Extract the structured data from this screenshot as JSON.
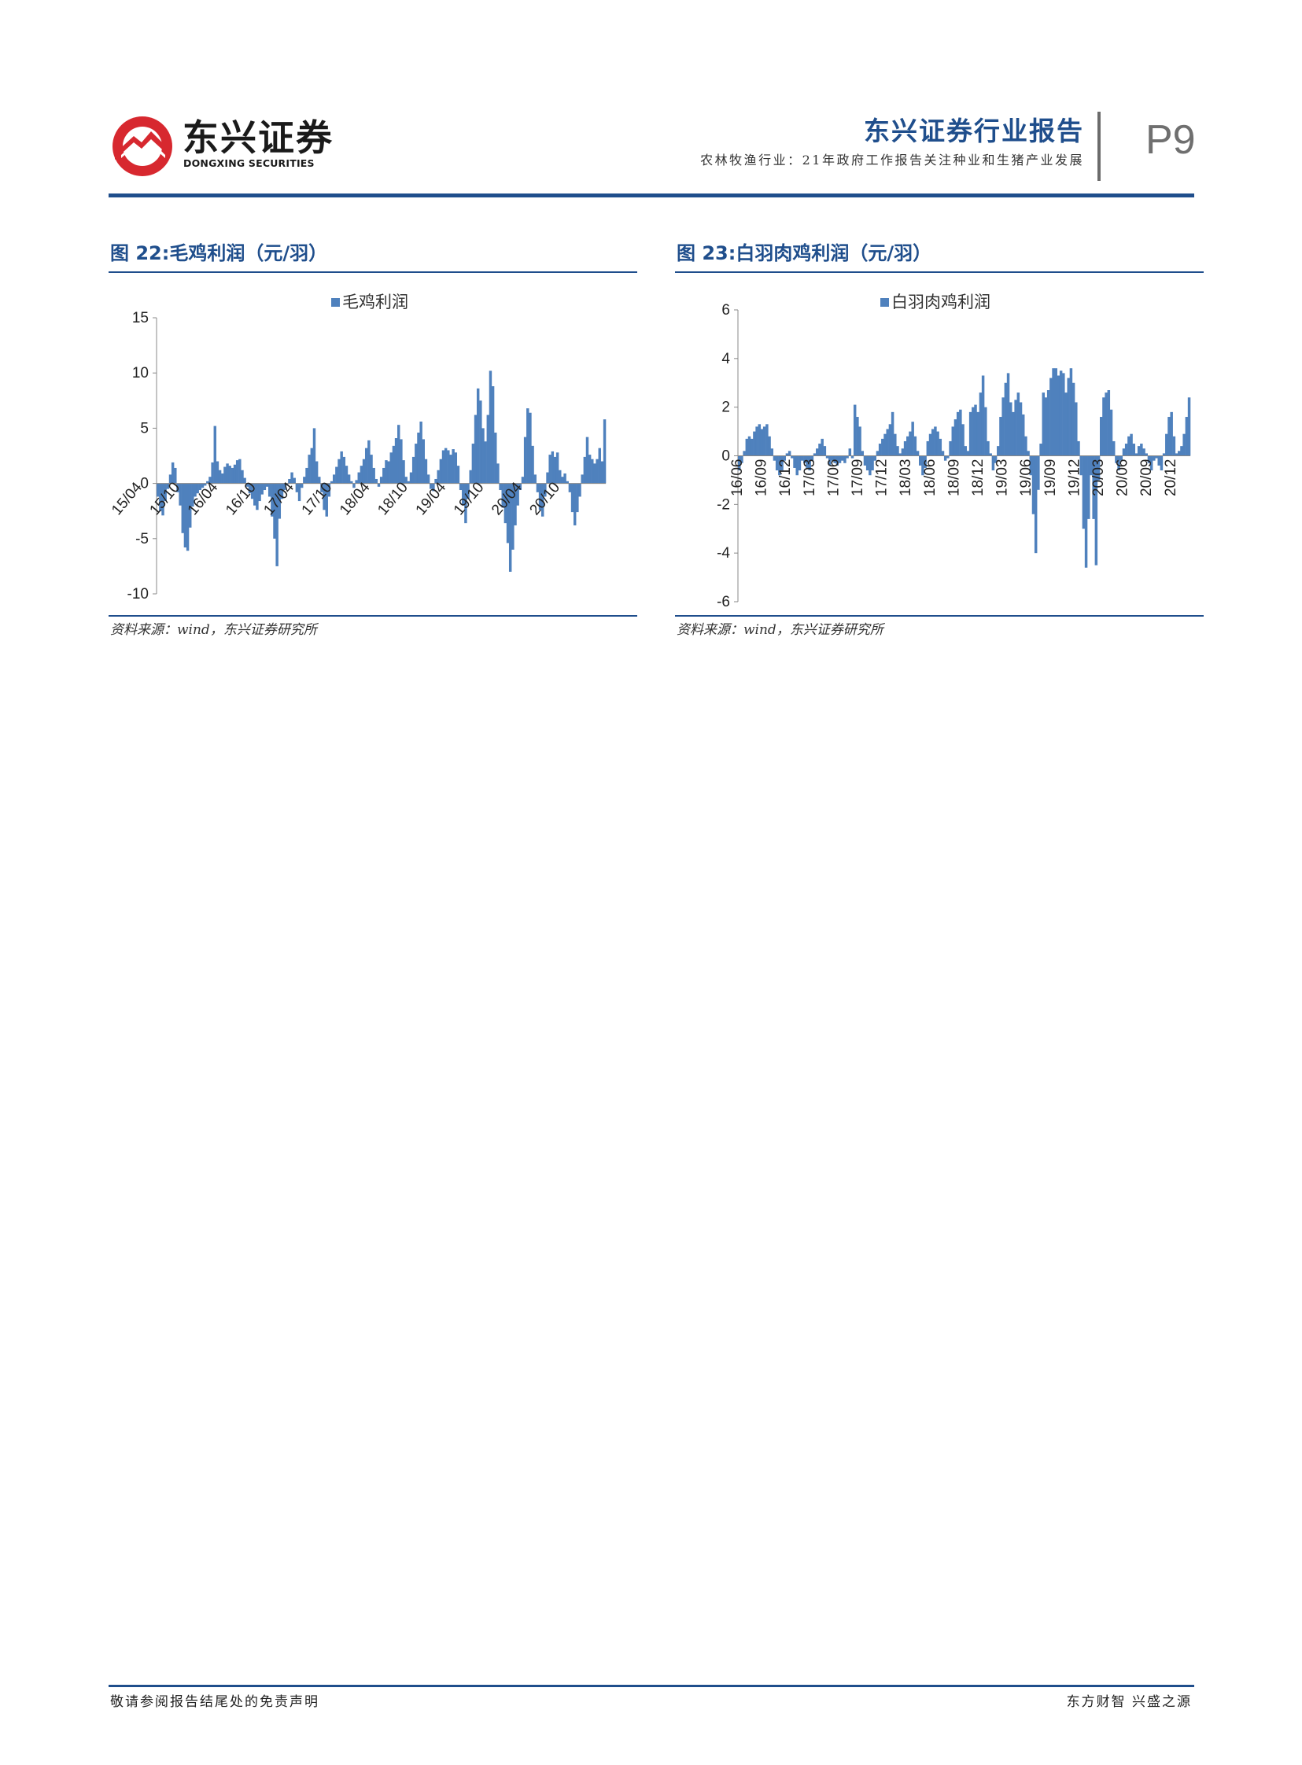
{
  "header": {
    "logo_cn": "东兴证券",
    "logo_en": "DONGXING SECURITIES",
    "title": "东兴证券行业报告",
    "subtitle": "农林牧渔行业：21年政府工作报告关注种业和生猪产业发展",
    "page": "P9"
  },
  "figures": [
    {
      "title": "图 22:毛鸡利润（元/羽）",
      "source": "资料来源：wind，东兴证券研究所"
    },
    {
      "title": "图 23:白羽肉鸡利润（元/羽）",
      "source": "资料来源：wind，东兴证券研究所"
    }
  ],
  "colors": {
    "bar": "#4f81bd",
    "accent": "#1f4e8c",
    "logo_red": "#d7282f"
  },
  "chart_data": [
    {
      "type": "bar",
      "legend": "毛鸡利润",
      "legend_position": "top-center",
      "grid": false,
      "ylim": [
        -10,
        15
      ],
      "yticks": [
        15,
        10,
        5,
        0,
        -5,
        -10
      ],
      "x_tick_labels": [
        "15/04",
        "15/10",
        "16/04",
        "16/10",
        "17/04",
        "17/10",
        "18/04",
        "18/10",
        "19/04",
        "19/10",
        "20/04",
        "20/10"
      ],
      "series": [
        {
          "name": "毛鸡利润",
          "weekly_start": "15/04",
          "values": [
            -1.2,
            -2.5,
            -2.9,
            -1.6,
            -0.5,
            0.8,
            1.9,
            1.4,
            -0.8,
            -2.0,
            -4.5,
            -5.8,
            -6.1,
            -4.0,
            -2.1,
            -1.2,
            -0.9,
            -0.6,
            -0.4,
            -0.2,
            0.2,
            0.6,
            1.9,
            5.2,
            2.0,
            1.2,
            0.9,
            1.5,
            1.8,
            1.6,
            1.4,
            1.7,
            2.1,
            2.2,
            1.2,
            0.5,
            -0.3,
            -0.9,
            -1.4,
            -2.0,
            -2.4,
            -1.6,
            -1.0,
            -0.6,
            -0.3,
            -1.2,
            -3.0,
            -5.0,
            -7.5,
            -3.2,
            -1.4,
            -0.6,
            -0.2,
            0.4,
            1.0,
            0.5,
            -0.8,
            -1.6,
            -0.4,
            0.6,
            1.4,
            2.6,
            3.2,
            5.0,
            2.0,
            0.6,
            -0.8,
            -2.4,
            -3.0,
            -1.2,
            0.2,
            0.8,
            1.5,
            2.2,
            2.9,
            2.4,
            1.6,
            0.8,
            0.2,
            -0.4,
            0.3,
            1.0,
            1.6,
            2.2,
            3.2,
            3.9,
            2.6,
            1.4,
            0.4,
            -0.3,
            0.6,
            1.4,
            2.1,
            2.0,
            2.8,
            3.4,
            4.1,
            5.3,
            4.0,
            2.1,
            0.6,
            0.2,
            1.0,
            2.4,
            3.6,
            4.6,
            5.6,
            4.0,
            2.2,
            0.8,
            -0.5,
            -0.7,
            0.4,
            1.2,
            2.2,
            3.0,
            3.2,
            3.0,
            2.6,
            3.1,
            2.8,
            1.6,
            -0.6,
            -2.0,
            -3.6,
            -1.4,
            1.2,
            3.6,
            6.2,
            8.6,
            7.5,
            5.0,
            3.8,
            6.2,
            10.2,
            8.8,
            4.6,
            1.8,
            -0.6,
            -2.2,
            -3.6,
            -5.4,
            -8.0,
            -6.0,
            -3.8,
            -2.0,
            -0.6,
            0.6,
            4.2,
            6.8,
            6.4,
            3.4,
            0.8,
            -0.8,
            -2.4,
            -3.0,
            -1.2,
            1.0,
            2.6,
            2.9,
            2.4,
            2.8,
            1.2,
            0.6,
            0.9,
            0.2,
            -0.8,
            -2.6,
            -3.8,
            -2.6,
            -1.2,
            0.8,
            2.4,
            4.2,
            2.6,
            2.2,
            1.8,
            2.2,
            3.2,
            2.0,
            5.8
          ]
        }
      ]
    },
    {
      "type": "bar",
      "legend": "白羽肉鸡利润",
      "legend_position": "top-center",
      "grid": false,
      "ylim": [
        -6,
        6
      ],
      "yticks": [
        6,
        4,
        2,
        0,
        -2,
        -4,
        -6
      ],
      "x_tick_labels": [
        "16/06",
        "16/09",
        "16/12",
        "17/03",
        "17/06",
        "17/09",
        "17/12",
        "18/03",
        "18/06",
        "18/09",
        "18/12",
        "19/03",
        "19/06",
        "19/09",
        "19/12",
        "20/03",
        "20/06",
        "20/09",
        "20/12"
      ],
      "series": [
        {
          "name": "白羽肉鸡利润",
          "weekly_start": "16/06",
          "values": [
            -0.6,
            -0.3,
            0.2,
            0.7,
            0.8,
            0.7,
            1.0,
            1.2,
            1.3,
            1.1,
            1.2,
            1.3,
            0.8,
            0.3,
            -0.2,
            -0.6,
            -0.8,
            -0.6,
            -0.2,
            0.1,
            0.2,
            -0.1,
            -0.5,
            -0.8,
            -0.6,
            -0.2,
            -0.3,
            -0.5,
            -0.6,
            -0.2,
            0.1,
            0.3,
            0.5,
            0.7,
            0.4,
            -0.1,
            -0.4,
            -0.2,
            -0.3,
            -0.4,
            -0.3,
            -0.2,
            -0.3,
            -0.1,
            0.3,
            -0.1,
            2.1,
            1.6,
            1.2,
            0.2,
            -0.4,
            -0.6,
            -0.8,
            -0.6,
            -0.2,
            0.2,
            0.5,
            0.7,
            0.9,
            1.1,
            1.3,
            1.8,
            0.9,
            0.4,
            0.1,
            0.3,
            0.6,
            0.8,
            1.0,
            1.4,
            0.8,
            0.2,
            -0.4,
            -0.8,
            -0.5,
            0.6,
            0.9,
            1.1,
            1.2,
            1.0,
            0.7,
            0.2,
            -0.2,
            -0.1,
            0.6,
            1.2,
            1.5,
            1.8,
            1.9,
            1.3,
            0.4,
            0.2,
            1.8,
            2.0,
            2.1,
            1.8,
            2.6,
            3.3,
            2.0,
            0.6,
            0.1,
            -0.6,
            -0.3,
            0.4,
            1.6,
            2.4,
            3.0,
            3.4,
            2.2,
            1.8,
            2.3,
            2.6,
            2.2,
            1.7,
            0.8,
            0.2,
            -0.8,
            -2.4,
            -4.0,
            -1.4,
            0.5,
            2.6,
            2.4,
            2.7,
            3.2,
            3.6,
            3.6,
            3.3,
            3.5,
            3.4,
            2.6,
            3.2,
            3.6,
            3.0,
            2.2,
            0.6,
            -0.8,
            -3.0,
            -4.6,
            -2.6,
            -0.8,
            -2.6,
            -4.5,
            -1.0,
            1.6,
            2.4,
            2.6,
            2.7,
            1.9,
            0.6,
            -0.3,
            -0.6,
            -0.2,
            0.3,
            0.5,
            0.8,
            0.9,
            0.5,
            0.1,
            0.4,
            0.5,
            0.3,
            0.1,
            -0.3,
            -0.6,
            -0.2,
            -0.1,
            -0.4,
            -0.6,
            0.1,
            0.9,
            1.6,
            1.8,
            0.8,
            0.1,
            0.2,
            0.4,
            0.9,
            1.6,
            2.4
          ]
        }
      ]
    }
  ],
  "footer": {
    "left": "敬请参阅报告结尾处的免责声明",
    "right": "东方财智 兴盛之源"
  }
}
